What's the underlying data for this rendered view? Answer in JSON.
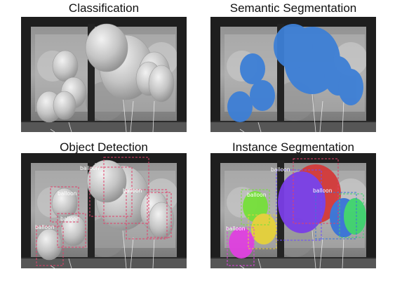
{
  "panels": [
    {
      "id": "classification",
      "title": "Classification"
    },
    {
      "id": "semantic",
      "title": "Semantic Segmentation"
    },
    {
      "id": "detection",
      "title": "Object Detection"
    },
    {
      "id": "instance",
      "title": "Instance Segmentation"
    }
  ],
  "object_label": "balloon",
  "colors": {
    "semantic_fill": "#3d7fd6",
    "detection_box": "#e0406a",
    "instance_purple": "#7a3ee6",
    "instance_red": "#d43a3a",
    "instance_blue": "#3a74d8",
    "instance_green": "#3fd46e",
    "instance_yellow": "#e6d23a",
    "instance_magenta": "#e040e0",
    "instance_lime": "#76e03a"
  }
}
